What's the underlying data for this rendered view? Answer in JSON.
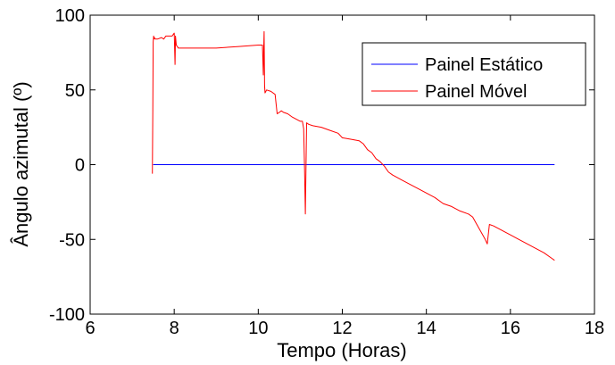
{
  "chart_data": {
    "type": "line",
    "xlabel": "Tempo (Horas)",
    "ylabel": "Ângulo azimutal (º)",
    "xlim": [
      6,
      18
    ],
    "ylim": [
      -100,
      100
    ],
    "xticks": [
      6,
      8,
      10,
      12,
      14,
      16,
      18
    ],
    "yticks": [
      -100,
      -50,
      0,
      50,
      100
    ],
    "grid": false,
    "legend_position": "top-right",
    "series": [
      {
        "name": "Painel Estático",
        "color": "#0000ff",
        "x": [
          7.5,
          17.05
        ],
        "y": [
          0,
          0
        ]
      },
      {
        "name": "Painel Móvel",
        "color": "#ff0000",
        "x": [
          7.48,
          7.49,
          7.5,
          7.51,
          7.52,
          7.53,
          7.55,
          7.6,
          7.7,
          7.75,
          7.8,
          7.9,
          7.95,
          8.0,
          8.02,
          8.03,
          8.05,
          8.1,
          8.3,
          8.5,
          8.7,
          9.0,
          9.5,
          10.0,
          10.1,
          10.12,
          10.13,
          10.14,
          10.15,
          10.16,
          10.2,
          10.3,
          10.4,
          10.45,
          10.5,
          10.55,
          10.6,
          10.7,
          10.8,
          11.0,
          11.05,
          11.08,
          11.1,
          11.12,
          11.15,
          11.2,
          11.3,
          11.5,
          11.7,
          11.9,
          12.0,
          12.2,
          12.4,
          12.5,
          12.6,
          12.7,
          12.8,
          12.9,
          13.0,
          13.1,
          13.2,
          13.4,
          13.6,
          13.8,
          14.0,
          14.2,
          14.4,
          14.6,
          14.8,
          15.0,
          15.1,
          15.2,
          15.3,
          15.4,
          15.45,
          15.5,
          15.6,
          15.8,
          16.0,
          16.2,
          16.4,
          16.6,
          16.8,
          17.0,
          17.05
        ],
        "y": [
          -6,
          37,
          82,
          86,
          84,
          85,
          84,
          84,
          85,
          84,
          86,
          86,
          86,
          88,
          67,
          86,
          80,
          78,
          78,
          78,
          78,
          78,
          79,
          80,
          80,
          60,
          79,
          89,
          53,
          48,
          50,
          49,
          47,
          34,
          35,
          36,
          35,
          34,
          32,
          29,
          29,
          24,
          0,
          -33,
          28,
          27,
          26,
          25,
          23,
          21,
          18,
          17,
          16,
          14,
          10,
          8,
          4,
          2,
          -1,
          -5,
          -7,
          -10,
          -13,
          -16,
          -19,
          -22,
          -26,
          -28,
          -31,
          -33,
          -35,
          -40,
          -45,
          -50,
          -53,
          -40,
          -41,
          -44,
          -47,
          -50,
          -53,
          -56,
          -59,
          -63,
          -64
        ]
      }
    ]
  }
}
